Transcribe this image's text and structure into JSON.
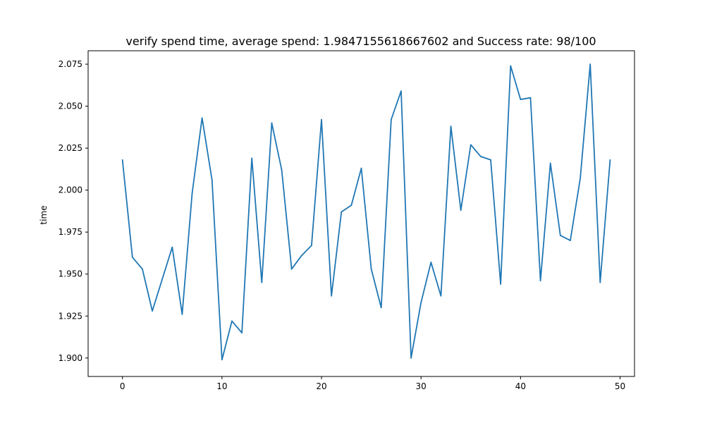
{
  "chart_data": {
    "type": "line",
    "title": "verify spend time, average spend: 1.9847155618667602 and Success rate: 98/100",
    "xlabel": "",
    "ylabel": "time",
    "xlim": [
      -3.45,
      51.45
    ],
    "ylim": [
      1.889,
      2.083
    ],
    "grid": false,
    "line_color": "#1f77b4",
    "x_ticks": [
      0,
      10,
      20,
      30,
      40,
      50
    ],
    "x_tick_labels": [
      "0",
      "10",
      "20",
      "30",
      "40",
      "50"
    ],
    "y_ticks": [
      1.9,
      1.925,
      1.95,
      1.975,
      2.0,
      2.025,
      2.05,
      2.075
    ],
    "y_tick_labels": [
      "1.900",
      "1.925",
      "1.950",
      "1.975",
      "2.000",
      "2.025",
      "2.050",
      "2.075"
    ],
    "series": [
      {
        "x": [
          0,
          1,
          2,
          3,
          4,
          5,
          6,
          7,
          8,
          9,
          10,
          11,
          12,
          13,
          14,
          15,
          16,
          17,
          18,
          19,
          20,
          21,
          22,
          23,
          24,
          25,
          26,
          27,
          28,
          29,
          30,
          31,
          32,
          33,
          34,
          35,
          36,
          37,
          38,
          39,
          40,
          41,
          42,
          43,
          44,
          45,
          46,
          47,
          48,
          49
        ],
        "values": [
          2.018,
          1.96,
          1.953,
          1.928,
          1.947,
          1.966,
          1.926,
          1.998,
          2.043,
          2.006,
          1.899,
          1.922,
          1.915,
          2.019,
          1.945,
          2.04,
          2.012,
          1.953,
          1.961,
          1.967,
          2.042,
          1.937,
          1.987,
          1.991,
          2.013,
          1.953,
          1.93,
          2.042,
          2.059,
          1.9,
          1.933,
          1.957,
          1.937,
          2.038,
          1.988,
          2.027,
          2.02,
          2.018,
          1.944,
          2.074,
          2.054,
          2.055,
          1.946,
          2.016,
          1.973,
          1.97,
          2.007,
          2.075,
          1.945,
          2.018
        ]
      }
    ]
  }
}
